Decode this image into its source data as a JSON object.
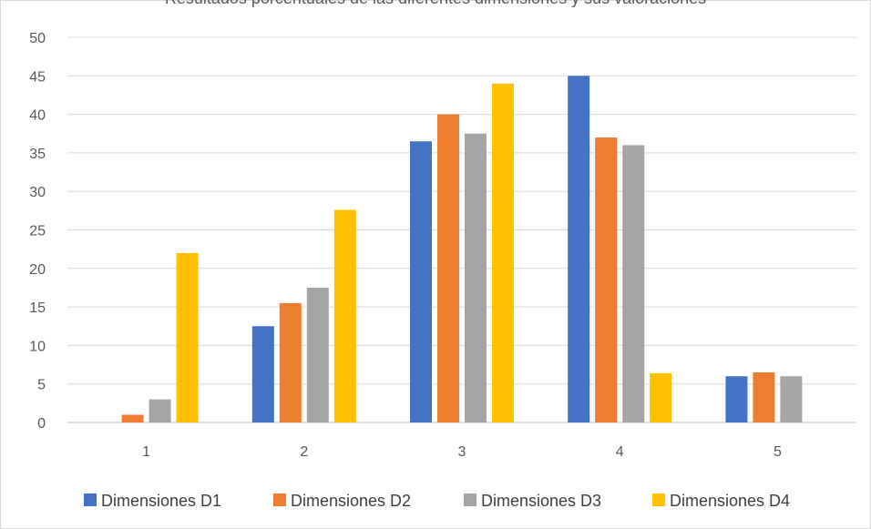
{
  "chart_data": {
    "type": "bar",
    "title": "Resultados porcentuales de las diferentes dimensiones y sus valoraciones",
    "xlabel": "",
    "ylabel": "",
    "categories": [
      "1",
      "2",
      "3",
      "4",
      "5"
    ],
    "ylim": [
      0,
      50
    ],
    "yticks": [
      0,
      5,
      10,
      15,
      20,
      25,
      30,
      35,
      40,
      45,
      50
    ],
    "grid": true,
    "legend_position": "bottom",
    "series": [
      {
        "name": "Dimensiones D1",
        "color": "#4472C4",
        "values": [
          0,
          12.5,
          36.5,
          45,
          6
        ]
      },
      {
        "name": "Dimensiones D2",
        "color": "#ED7D31",
        "values": [
          1,
          15.5,
          40,
          37,
          6.5
        ]
      },
      {
        "name": "Dimensiones D3",
        "color": "#A5A5A5",
        "values": [
          3,
          17.5,
          37.5,
          36,
          6
        ]
      },
      {
        "name": "Dimensiones D4",
        "color": "#FFC000",
        "values": [
          22,
          27.6,
          44,
          6.4,
          0
        ]
      }
    ]
  }
}
